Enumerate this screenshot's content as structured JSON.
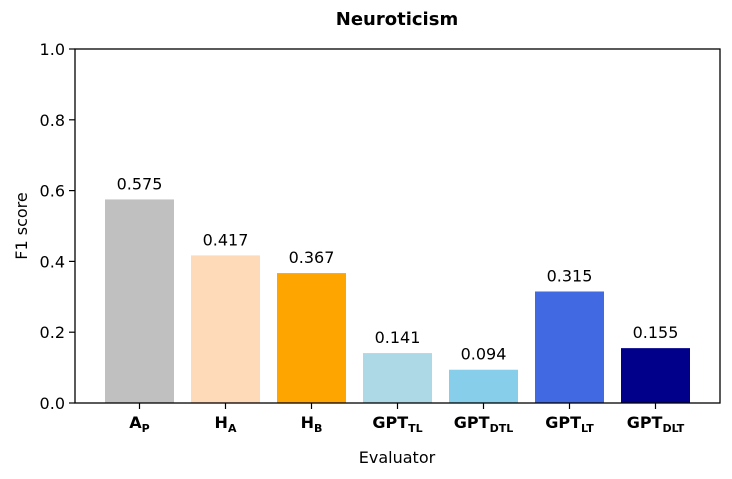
{
  "chart_data": {
    "type": "bar",
    "title": "Neuroticism",
    "xlabel": "Evaluator",
    "ylabel": "F1 score",
    "ylim": [
      0,
      1.0
    ],
    "yticks": [
      "0.0",
      "0.2",
      "0.4",
      "0.6",
      "0.8",
      "1.0"
    ],
    "grid": false,
    "categories": [
      {
        "main": "A",
        "sub": "P"
      },
      {
        "main": "H",
        "sub": "A"
      },
      {
        "main": "H",
        "sub": "B"
      },
      {
        "main": "GPT",
        "sub": "TL"
      },
      {
        "main": "GPT",
        "sub": "DTL"
      },
      {
        "main": "GPT",
        "sub": "LT"
      },
      {
        "main": "GPT",
        "sub": "DLT"
      }
    ],
    "values": [
      0.575,
      0.417,
      0.367,
      0.141,
      0.094,
      0.315,
      0.155
    ],
    "value_labels": [
      "0.575",
      "0.417",
      "0.367",
      "0.141",
      "0.094",
      "0.315",
      "0.155"
    ],
    "colors": [
      "#c0c0c0",
      "#ffdab9",
      "#ffa500",
      "#add8e6",
      "#87ceeb",
      "#4169e1",
      "#00008b"
    ]
  }
}
